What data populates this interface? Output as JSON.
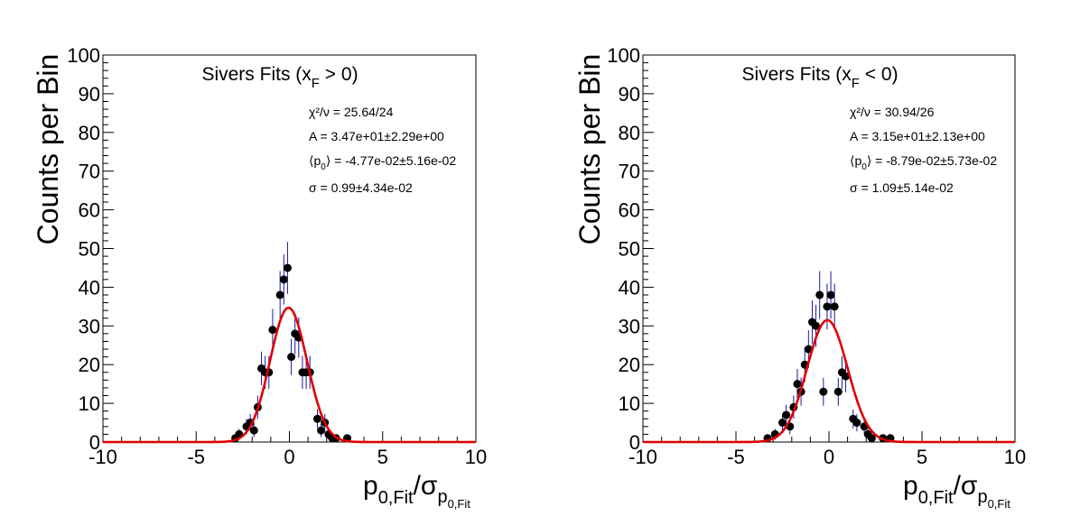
{
  "chart_data": [
    {
      "type": "scatter",
      "title": "Sivers Fits (x",
      "title_sub": "F",
      "title_end": " > 0)",
      "ylabel": "Counts per Bin",
      "xlabel": {
        "p": "p",
        "p_sub": "0,Fit",
        "sig": "/σ",
        "sig_p": "p",
        "sig_p_sub": "0,Fit"
      },
      "xlim": [
        -10,
        10
      ],
      "ylim": [
        0,
        100
      ],
      "x_ticks": [
        "-10",
        "-5",
        "0",
        "5",
        "10"
      ],
      "y_ticks": [
        "0",
        "10",
        "20",
        "30",
        "40",
        "50",
        "60",
        "70",
        "80",
        "90",
        "100"
      ],
      "stats": {
        "chi2": "χ²/ν = 25.64/24",
        "A": "A = 3.47e+01±2.29e+00",
        "p0_a": "⟨p",
        "p0_sub": "0",
        "p0_b": "⟩ = -4.77e-02±5.16e-02",
        "sigma": "σ = 0.99±4.34e-02"
      },
      "fit": {
        "A": 34.7,
        "mean": -0.0477,
        "sigma": 0.99
      },
      "points": [
        {
          "x": -2.9,
          "y": 1
        },
        {
          "x": -2.7,
          "y": 2
        },
        {
          "x": -2.3,
          "y": 4
        },
        {
          "x": -2.1,
          "y": 5
        },
        {
          "x": -1.9,
          "y": 3
        },
        {
          "x": -1.7,
          "y": 9
        },
        {
          "x": -1.5,
          "y": 19
        },
        {
          "x": -1.3,
          "y": 18
        },
        {
          "x": -1.1,
          "y": 18
        },
        {
          "x": -0.9,
          "y": 29
        },
        {
          "x": -0.5,
          "y": 38
        },
        {
          "x": -0.3,
          "y": 42
        },
        {
          "x": -0.1,
          "y": 45
        },
        {
          "x": 0.1,
          "y": 22
        },
        {
          "x": 0.3,
          "y": 28
        },
        {
          "x": 0.5,
          "y": 27
        },
        {
          "x": 0.7,
          "y": 18
        },
        {
          "x": 0.9,
          "y": 18
        },
        {
          "x": 1.1,
          "y": 18
        },
        {
          "x": 1.5,
          "y": 6
        },
        {
          "x": 1.7,
          "y": 3
        },
        {
          "x": 1.9,
          "y": 5
        },
        {
          "x": 2.1,
          "y": 2
        },
        {
          "x": 2.3,
          "y": 1
        },
        {
          "x": 2.5,
          "y": 1
        },
        {
          "x": 3.1,
          "y": 1
        }
      ]
    },
    {
      "type": "scatter",
      "title": "Sivers Fits (x",
      "title_sub": "F",
      "title_end": " < 0)",
      "ylabel": "Counts per Bin",
      "xlabel": {
        "p": "p",
        "p_sub": "0,Fit",
        "sig": "/σ",
        "sig_p": "p",
        "sig_p_sub": "0,Fit"
      },
      "xlim": [
        -10,
        10
      ],
      "ylim": [
        0,
        100
      ],
      "x_ticks": [
        "-10",
        "-5",
        "0",
        "5",
        "10"
      ],
      "y_ticks": [
        "0",
        "10",
        "20",
        "30",
        "40",
        "50",
        "60",
        "70",
        "80",
        "90",
        "100"
      ],
      "stats": {
        "chi2": "χ²/ν = 30.94/26",
        "A": "A = 3.15e+01±2.13e+00",
        "p0_a": "⟨p",
        "p0_sub": "0",
        "p0_b": "⟩ = -8.79e-02±5.73e-02",
        "sigma": "σ = 1.09±5.14e-02"
      },
      "fit": {
        "A": 31.5,
        "mean": -0.0879,
        "sigma": 1.09
      },
      "points": [
        {
          "x": -3.3,
          "y": 1
        },
        {
          "x": -2.9,
          "y": 2
        },
        {
          "x": -2.5,
          "y": 5
        },
        {
          "x": -2.3,
          "y": 7
        },
        {
          "x": -2.1,
          "y": 4
        },
        {
          "x": -1.9,
          "y": 9
        },
        {
          "x": -1.7,
          "y": 15
        },
        {
          "x": -1.5,
          "y": 13
        },
        {
          "x": -1.3,
          "y": 20
        },
        {
          "x": -1.1,
          "y": 24
        },
        {
          "x": -0.9,
          "y": 31
        },
        {
          "x": -0.7,
          "y": 30
        },
        {
          "x": -0.5,
          "y": 38
        },
        {
          "x": -0.3,
          "y": 13
        },
        {
          "x": -0.1,
          "y": 35
        },
        {
          "x": 0.1,
          "y": 38
        },
        {
          "x": 0.3,
          "y": 35
        },
        {
          "x": 0.5,
          "y": 13
        },
        {
          "x": 0.7,
          "y": 18
        },
        {
          "x": 0.9,
          "y": 17
        },
        {
          "x": 1.3,
          "y": 6
        },
        {
          "x": 1.5,
          "y": 5
        },
        {
          "x": 1.9,
          "y": 4
        },
        {
          "x": 2.1,
          "y": 2
        },
        {
          "x": 2.3,
          "y": 1
        },
        {
          "x": 2.9,
          "y": 1
        },
        {
          "x": 3.3,
          "y": 1
        }
      ]
    }
  ]
}
